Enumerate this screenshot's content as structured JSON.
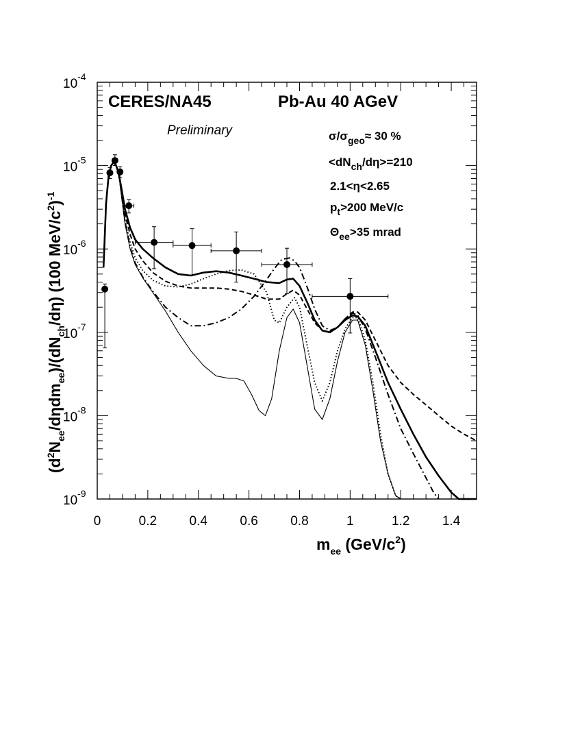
{
  "chart_data": {
    "type": "line",
    "yscale": "log",
    "title_left": "CERES/NA45",
    "title_right": "Pb-Au 40 AGeV",
    "note": "Preliminary",
    "annotations": [
      {
        "id": "centrality",
        "main": "σ/σ",
        "sub": "geo",
        "rest": "≈ 30 %"
      },
      {
        "id": "multiplicity",
        "pre": "<dN",
        "sub": "ch",
        "rest": "/dη>=210"
      },
      {
        "id": "eta_range",
        "text": "2.1<η<2.65"
      },
      {
        "id": "pt_cut",
        "pre": "p",
        "sub": "t",
        "rest": ">200 MeV/c"
      },
      {
        "id": "angle_cut",
        "pre": "Θ",
        "sub": "ee",
        "rest": ">35 mrad"
      }
    ],
    "xlabel": {
      "main": "m",
      "sub": "ee",
      "mid": " (GeV/c",
      "sup": "2",
      "end": ")"
    },
    "ylabel": {
      "p1": "(d",
      "s1": "2",
      "p2": "N",
      "b1": "ee",
      "p3": "/dηdm",
      "b2": "ee",
      "p4": ")/(dN",
      "b3": "ch",
      "p5": "/dη) (100 MeV/c",
      "s2": "2",
      "p6": ")",
      "s3": "-1"
    },
    "xlim": [
      0,
      1.5
    ],
    "ylim_exp": [
      -9,
      -4
    ],
    "xticks": [
      "0",
      "0.2",
      "0.4",
      "0.6",
      "0.8",
      "1",
      "1.2",
      "1.4"
    ],
    "yticks": [
      {
        "base": "10",
        "exp": "-9"
      },
      {
        "base": "10",
        "exp": "-8"
      },
      {
        "base": "10",
        "exp": "-7"
      },
      {
        "base": "10",
        "exp": "-6"
      },
      {
        "base": "10",
        "exp": "-5"
      },
      {
        "base": "10",
        "exp": "-4"
      }
    ],
    "points": [
      {
        "x": 0.03,
        "y": 3.3e-07,
        "xerr": 0.0,
        "ylo": 6.5e-08,
        "yhi": 3.8e-07
      },
      {
        "x": 0.05,
        "y": 8.2e-06,
        "xerr": 0.0,
        "ylo": 7e-06,
        "yhi": 9.5e-06
      },
      {
        "x": 0.07,
        "y": 1.15e-05,
        "xerr": 0.01,
        "ylo": 1e-05,
        "yhi": 1.35e-05
      },
      {
        "x": 0.09,
        "y": 8.4e-06,
        "xerr": 0.0,
        "ylo": 7.2e-06,
        "yhi": 9.7e-06
      },
      {
        "x": 0.125,
        "y": 3.3e-06,
        "xerr": 0.02,
        "ylo": 2.7e-06,
        "yhi": 3.9e-06
      },
      {
        "x": 0.225,
        "y": 1.2e-06,
        "xerr": 0.075,
        "ylo": 5.8e-07,
        "yhi": 1.85e-06
      },
      {
        "x": 0.375,
        "y": 1.1e-06,
        "xerr": 0.075,
        "ylo": 4.8e-07,
        "yhi": 1.75e-06
      },
      {
        "x": 0.55,
        "y": 9.5e-07,
        "xerr": 0.1,
        "ylo": 4e-07,
        "yhi": 1.6e-06
      },
      {
        "x": 0.75,
        "y": 6.5e-07,
        "xerr": 0.1,
        "ylo": 2.9e-07,
        "yhi": 1.02e-06
      },
      {
        "x": 1.0,
        "y": 2.7e-07,
        "xerr": 0.15,
        "ylo": 9.8e-08,
        "yhi": 4.4e-07
      }
    ],
    "series": [
      {
        "name": "cocktail",
        "style": "thin-solid",
        "x": [
          0.025,
          0.035,
          0.045,
          0.055,
          0.065,
          0.075,
          0.085,
          0.095,
          0.11,
          0.13,
          0.15,
          0.18,
          0.22,
          0.27,
          0.32,
          0.37,
          0.42,
          0.47,
          0.52,
          0.55,
          0.58,
          0.61,
          0.64,
          0.665,
          0.69,
          0.72,
          0.75,
          0.775,
          0.8,
          0.83,
          0.86,
          0.89,
          0.92,
          0.95,
          0.98,
          1.01,
          1.03,
          1.06,
          1.09,
          1.12,
          1.15,
          1.18,
          1.2
        ],
        "y": [
          6e-07,
          3.5e-06,
          7.5e-06,
          1e-05,
          1.1e-05,
          1e-05,
          8e-06,
          4.5e-06,
          2e-06,
          1e-06,
          6.5e-07,
          4.5e-07,
          3e-07,
          1.8e-07,
          1e-07,
          6e-08,
          4e-08,
          3e-08,
          2.8e-08,
          2.8e-08,
          2.6e-08,
          1.8e-08,
          1.15e-08,
          1e-08,
          1.6e-08,
          6e-08,
          1.5e-07,
          1.9e-07,
          1.3e-07,
          4e-08,
          1.2e-08,
          9e-09,
          1.6e-08,
          4.5e-08,
          1e-07,
          1.4e-07,
          1.4e-07,
          7e-08,
          2e-08,
          5e-09,
          2e-09,
          1.1e-09,
          1e-09
        ]
      },
      {
        "name": "model-thick-solid",
        "style": "thick-solid",
        "x": [
          0.025,
          0.035,
          0.045,
          0.055,
          0.065,
          0.075,
          0.085,
          0.095,
          0.11,
          0.13,
          0.15,
          0.18,
          0.22,
          0.27,
          0.32,
          0.37,
          0.42,
          0.47,
          0.52,
          0.57,
          0.62,
          0.67,
          0.72,
          0.75,
          0.775,
          0.8,
          0.83,
          0.86,
          0.89,
          0.92,
          0.95,
          0.98,
          1.01,
          1.03,
          1.06,
          1.1,
          1.15,
          1.2,
          1.25,
          1.3,
          1.35,
          1.4,
          1.43,
          1.45,
          1.5
        ],
        "y": [
          6e-07,
          3.5e-06,
          7.5e-06,
          1e-05,
          1.1e-05,
          1e-05,
          8e-06,
          5.5e-06,
          3e-06,
          1.8e-06,
          1.3e-06,
          1e-06,
          7.8e-07,
          6e-07,
          5e-07,
          4.8e-07,
          5.2e-07,
          5.4e-07,
          5.2e-07,
          4.8e-07,
          4.4e-07,
          4e-07,
          3.9e-07,
          4.3e-07,
          4.4e-07,
          3.6e-07,
          2.3e-07,
          1.4e-07,
          1.05e-07,
          1e-07,
          1.15e-07,
          1.4e-07,
          1.6e-07,
          1.55e-07,
          1.2e-07,
          6e-08,
          2.5e-08,
          1.2e-08,
          6e-09,
          3.2e-09,
          1.9e-09,
          1.2e-09,
          1e-09,
          1e-09,
          1e-09
        ]
      },
      {
        "name": "model-dashed",
        "style": "dashed",
        "x": [
          0.025,
          0.035,
          0.045,
          0.055,
          0.065,
          0.075,
          0.085,
          0.095,
          0.11,
          0.13,
          0.15,
          0.18,
          0.22,
          0.27,
          0.32,
          0.37,
          0.42,
          0.47,
          0.52,
          0.57,
          0.62,
          0.67,
          0.72,
          0.75,
          0.775,
          0.8,
          0.83,
          0.86,
          0.89,
          0.92,
          0.95,
          0.98,
          1.01,
          1.03,
          1.06,
          1.1,
          1.15,
          1.2,
          1.25,
          1.3,
          1.35,
          1.4,
          1.45,
          1.5
        ],
        "y": [
          6e-07,
          3.5e-06,
          7.5e-06,
          1e-05,
          1.1e-05,
          1e-05,
          8e-06,
          5.2e-06,
          2.6e-06,
          1.5e-06,
          1e-06,
          7.2e-07,
          5.2e-07,
          4.1e-07,
          3.6e-07,
          3.4e-07,
          3.4e-07,
          3.4e-07,
          3.3e-07,
          3.1e-07,
          2.8e-07,
          2.5e-07,
          2.5e-07,
          2.9e-07,
          3.2e-07,
          2.8e-07,
          1.9e-07,
          1.3e-07,
          1.05e-07,
          1e-07,
          1.15e-07,
          1.45e-07,
          1.75e-07,
          1.75e-07,
          1.4e-07,
          8e-08,
          4e-08,
          2.5e-08,
          1.8e-08,
          1.35e-08,
          1e-08,
          7.5e-09,
          6e-09,
          5e-09
        ]
      },
      {
        "name": "model-dotted",
        "style": "dotted",
        "x": [
          0.025,
          0.035,
          0.045,
          0.055,
          0.065,
          0.075,
          0.085,
          0.095,
          0.11,
          0.13,
          0.15,
          0.18,
          0.22,
          0.27,
          0.32,
          0.37,
          0.42,
          0.47,
          0.52,
          0.57,
          0.62,
          0.67,
          0.7,
          0.72,
          0.75,
          0.78,
          0.8,
          0.83,
          0.86,
          0.89,
          0.92,
          0.95,
          0.98,
          1.01,
          1.03,
          1.06,
          1.09,
          1.12,
          1.15,
          1.18,
          1.2
        ],
        "y": [
          6e-07,
          3.5e-06,
          7.5e-06,
          1e-05,
          1.1e-05,
          1e-05,
          8e-06,
          5e-06,
          2.2e-06,
          1.2e-06,
          7.8e-07,
          5.5e-07,
          4.2e-07,
          3.6e-07,
          3.5e-07,
          3.8e-07,
          4.4e-07,
          5e-07,
          5.5e-07,
          5.6e-07,
          5e-07,
          3e-07,
          1.4e-07,
          1.3e-07,
          2e-07,
          2.6e-07,
          2e-07,
          7e-08,
          2.5e-08,
          1.5e-08,
          2.5e-08,
          6e-08,
          1.1e-07,
          1.5e-07,
          1.5e-07,
          8e-08,
          2.5e-08,
          6e-09,
          2e-09,
          1.1e-09,
          1e-09
        ]
      },
      {
        "name": "model-dash-dot",
        "style": "dash-dot",
        "x": [
          0.025,
          0.035,
          0.045,
          0.055,
          0.065,
          0.075,
          0.085,
          0.095,
          0.11,
          0.13,
          0.15,
          0.18,
          0.22,
          0.27,
          0.32,
          0.37,
          0.42,
          0.47,
          0.52,
          0.57,
          0.62,
          0.67,
          0.7,
          0.73,
          0.76,
          0.78,
          0.8,
          0.83,
          0.86,
          0.89,
          0.92,
          0.95,
          0.98,
          1.01,
          1.03,
          1.06,
          1.1,
          1.15,
          1.2,
          1.25,
          1.3,
          1.33,
          1.35
        ],
        "y": [
          6e-07,
          3.5e-06,
          7.5e-06,
          1e-05,
          1.1e-05,
          1e-05,
          8e-06,
          4.8e-06,
          2.1e-06,
          1.05e-06,
          6.8e-07,
          4.6e-07,
          3.1e-07,
          2e-07,
          1.5e-07,
          1.2e-07,
          1.2e-07,
          1.3e-07,
          1.5e-07,
          1.9e-07,
          2.7e-07,
          4.3e-07,
          5.8e-07,
          7.5e-07,
          7.8e-07,
          7.2e-07,
          6e-07,
          3.5e-07,
          1.9e-07,
          1.2e-07,
          1.05e-07,
          1.15e-07,
          1.45e-07,
          1.7e-07,
          1.6e-07,
          1.1e-07,
          5e-08,
          1.8e-08,
          7e-09,
          3.5e-09,
          1.8e-09,
          1.2e-09,
          1e-09
        ]
      }
    ]
  }
}
